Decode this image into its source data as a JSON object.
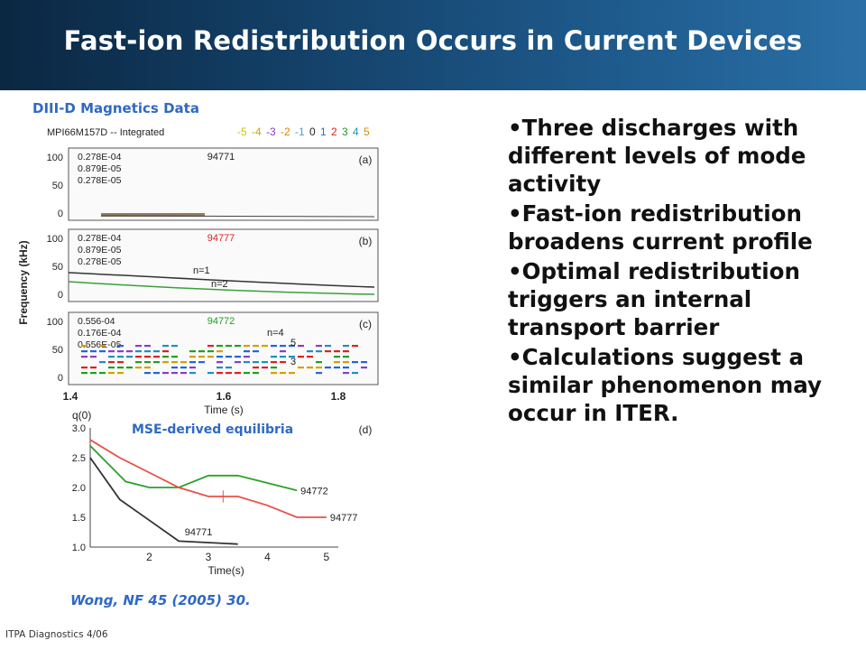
{
  "slide": {
    "title": "Fast-ion Redistribution Occurs in Current Devices",
    "footer": "ITPA Diagnostics 4/06",
    "colors": {
      "banner_dark": "#0b2742",
      "banner_light": "#2a6fa6",
      "accent_blue": "#2f69c4"
    }
  },
  "figure": {
    "heading": "DIII-D Magnetics Data",
    "mse_label": "MSE-derived equilibria",
    "citation": "Wong, NF 45 (2005) 30.",
    "spectrogram": {
      "header_left": "MPI66M157D -- Integrated",
      "mode_numbers": [
        {
          "text": "-5",
          "color": "#c9c400"
        },
        {
          "text": "-4",
          "color": "#d4a000"
        },
        {
          "text": "-3",
          "color": "#8a3cc8"
        },
        {
          "text": "-2",
          "color": "#e08000"
        },
        {
          "text": "-1",
          "color": "#4aa0e0"
        },
        {
          "text": "0",
          "color": "#222222"
        },
        {
          "text": "1",
          "color": "#2266dd"
        },
        {
          "text": "2",
          "color": "#e02020"
        },
        {
          "text": "3",
          "color": "#20a020"
        },
        {
          "text": "4",
          "color": "#1e90c0"
        },
        {
          "text": "5",
          "color": "#d88a00"
        }
      ],
      "y_axis_label": "Frequency (kHz)",
      "x_axis_label": "Time (s)",
      "x_ticks": [
        "1.4",
        "1.6",
        "1.8"
      ],
      "panels": [
        {
          "tag": "(a)",
          "shot": "94771",
          "shot_color": "#222222",
          "levels": [
            "0.278E-04",
            "0.879E-05",
            "0.278E-05"
          ],
          "y_ticks": [
            "100",
            "50",
            "0"
          ],
          "mode_labels": []
        },
        {
          "tag": "(b)",
          "shot": "94777",
          "shot_color": "#e02020",
          "levels": [
            "0.278E-04",
            "0.879E-05",
            "0.278E-05"
          ],
          "y_ticks": [
            "100",
            "50",
            "0"
          ],
          "mode_labels": [
            "n=1",
            "n=2"
          ]
        },
        {
          "tag": "(c)",
          "shot": "94772",
          "shot_color": "#20a020",
          "levels": [
            "0.556-04",
            "0.176E-04",
            "0.556E-05"
          ],
          "y_ticks": [
            "100",
            "50",
            "0"
          ],
          "mode_labels": [
            "n=4",
            "5",
            "3"
          ]
        }
      ]
    },
    "q_plot": {
      "tag": "(d)",
      "y_axis_label": "q(0)",
      "x_axis_label": "Time(s)",
      "y_ticks": [
        "3.0",
        "2.5",
        "2.0",
        "1.5",
        "1.0"
      ],
      "x_ticks": [
        "2",
        "3",
        "4",
        "5"
      ],
      "series": [
        {
          "name": "94772",
          "color": "#2ca02c",
          "points": [
            [
              1,
              2.7
            ],
            [
              1.6,
              2.1
            ],
            [
              2,
              2.0
            ],
            [
              2.5,
              2.0
            ],
            [
              3,
              2.2
            ],
            [
              3.5,
              2.2
            ],
            [
              4.5,
              1.95
            ]
          ]
        },
        {
          "name": "94777",
          "color": "#e8504a",
          "points": [
            [
              1,
              2.8
            ],
            [
              1.5,
              2.5
            ],
            [
              2,
              2.25
            ],
            [
              2.5,
              2.0
            ],
            [
              3,
              1.85
            ],
            [
              3.5,
              1.85
            ],
            [
              4,
              1.7
            ],
            [
              4.5,
              1.5
            ],
            [
              5,
              1.5
            ]
          ]
        },
        {
          "name": "94771",
          "color": "#333333",
          "points": [
            [
              1,
              2.5
            ],
            [
              1.5,
              1.8
            ],
            [
              2,
              1.45
            ],
            [
              2.5,
              1.1
            ],
            [
              3.5,
              1.05
            ]
          ]
        }
      ]
    }
  },
  "bullets": [
    "Three discharges with different levels of mode activity",
    "Fast-ion redistribution broadens current profile",
    "Optimal redistribution triggers an internal transport barrier",
    "Calculations suggest a similar phenomenon may occur in ITER."
  ]
}
